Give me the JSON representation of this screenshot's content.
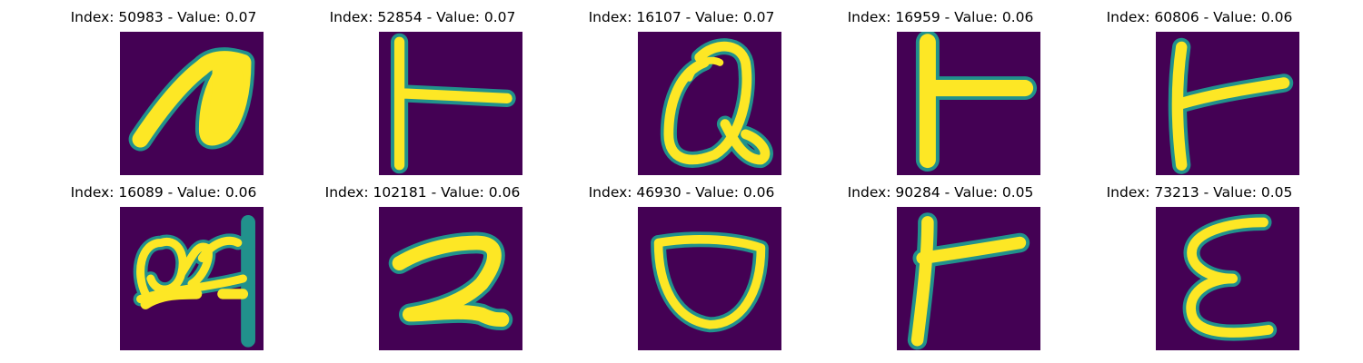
{
  "panels": [
    {
      "title": "Index: 50983 - Value: 0.07",
      "glyph": "n-blob"
    },
    {
      "title": "Index: 52854 - Value: 0.07",
      "glyph": "t-sideways"
    },
    {
      "title": "Index: 16107 - Value: 0.07",
      "glyph": "q-loop"
    },
    {
      "title": "Index: 16959 - Value: 0.06",
      "glyph": "t-sideways-bold"
    },
    {
      "title": "Index: 60806 - Value: 0.06",
      "glyph": "t-sideways-thin"
    },
    {
      "title": "Index: 16089 - Value: 0.06",
      "glyph": "scribble"
    },
    {
      "title": "Index: 102181 - Value: 0.06",
      "glyph": "digit-2"
    },
    {
      "title": "Index: 46930 - Value: 0.06",
      "glyph": "u-bowl"
    },
    {
      "title": "Index: 90284 - Value: 0.05",
      "glyph": "t-sideways-slanted"
    },
    {
      "title": "Index: 73213 - Value: 0.05",
      "glyph": "epsilon"
    }
  ],
  "colors": {
    "background": "#440154",
    "edge": "#21918c",
    "core": "#fde725",
    "mid": "#5ec962"
  }
}
